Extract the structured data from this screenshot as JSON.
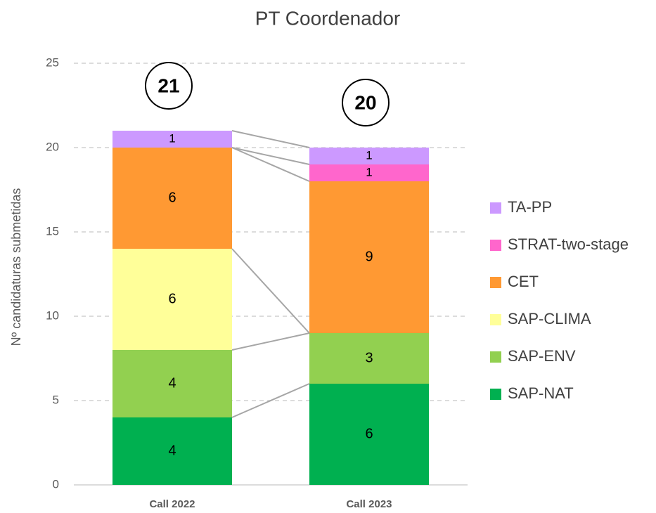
{
  "chart_data": {
    "type": "stacked_bar",
    "title": "PT Coordenador",
    "y_label": "Nº candidaturas submetidas",
    "categories": [
      "Call 2022",
      "Call 2023"
    ],
    "series": [
      {
        "name": "SAP-NAT",
        "color": "#00b050",
        "values": [
          4,
          6
        ]
      },
      {
        "name": "SAP-ENV",
        "color": "#92d050",
        "values": [
          4,
          3
        ]
      },
      {
        "name": "SAP-CLIMA",
        "color": "#ffff99",
        "values": [
          6,
          0
        ]
      },
      {
        "name": "CET",
        "color": "#ff9933",
        "values": [
          6,
          9
        ]
      },
      {
        "name": "STRAT-two-stage",
        "color": "#ff66cc",
        "values": [
          0,
          1
        ]
      },
      {
        "name": "TA-PP",
        "color": "#cc99ff",
        "values": [
          1,
          1
        ]
      }
    ],
    "totals": [
      21,
      20
    ],
    "ylim": [
      0,
      25
    ],
    "yticks": [
      0,
      5,
      10,
      15,
      20,
      25
    ],
    "grid": true
  }
}
